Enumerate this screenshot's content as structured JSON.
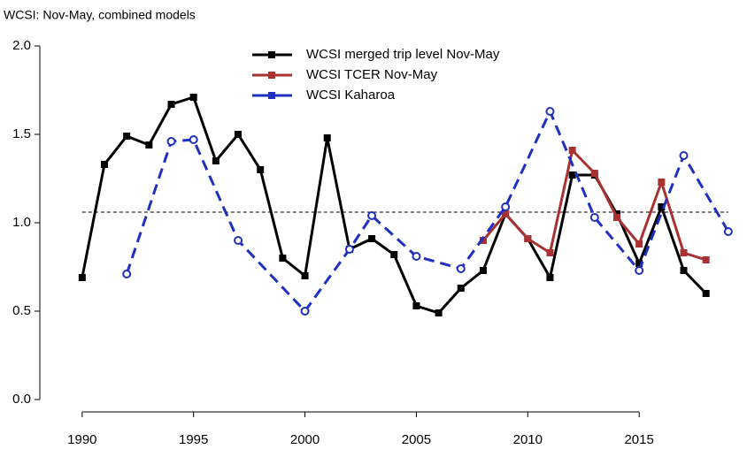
{
  "chart_data": {
    "type": "line",
    "title": "WCSI: Nov-May, combined models",
    "xlim": [
      1988.1,
      2019.8
    ],
    "ylim": [
      -0.07,
      2.1
    ],
    "xticks": [
      1990,
      1995,
      2000,
      2005,
      2010,
      2015
    ],
    "yticks": [
      {
        "value": 0,
        "label": "0.0"
      },
      {
        "value": 0.5,
        "label": "0.5"
      },
      {
        "value": 1,
        "label": "1.0"
      },
      {
        "value": 1.5,
        "label": "1.5"
      },
      {
        "value": 2,
        "label": "2.0"
      }
    ],
    "reference_line": 1.06,
    "series": [
      {
        "name": "WCSI merged trip level Nov-May",
        "color": "#000000",
        "marker": "square",
        "dash": false,
        "x": [
          1990,
          1991,
          1992,
          1993,
          1994,
          1995,
          1996,
          1997,
          1998,
          1999,
          2000,
          2001,
          2002,
          2003,
          2004,
          2005,
          2006,
          2007,
          2008,
          2009,
          2010,
          2011,
          2012,
          2013,
          2014,
          2015,
          2016,
          2017,
          2018
        ],
        "values": [
          0.69,
          1.33,
          1.49,
          1.44,
          1.67,
          1.71,
          1.35,
          1.5,
          1.3,
          0.8,
          0.7,
          1.48,
          0.85,
          0.91,
          0.82,
          0.53,
          0.49,
          0.63,
          0.73,
          1.05,
          0.91,
          0.69,
          1.27,
          1.27,
          1.05,
          0.77,
          1.09,
          0.73,
          0.6
        ]
      },
      {
        "name": "WCSI TCER Nov-May",
        "color": "#a83232",
        "marker": "square",
        "dash": false,
        "x": [
          2008,
          2009,
          2010,
          2011,
          2012,
          2013,
          2014,
          2015,
          2016,
          2017,
          2018
        ],
        "values": [
          0.9,
          1.05,
          0.91,
          0.83,
          1.41,
          1.28,
          1.03,
          0.88,
          1.23,
          0.83,
          0.79
        ]
      },
      {
        "name": "WCSI Kaharoa",
        "color": "#1f2fbf",
        "marker": "circle",
        "dash": true,
        "x": [
          1992,
          1994,
          1995,
          1997,
          2000,
          2002,
          2003,
          2005,
          2007,
          2009,
          2011,
          2013,
          2015,
          2017,
          2019
        ],
        "values": [
          0.71,
          1.46,
          1.47,
          0.9,
          0.5,
          0.85,
          1.04,
          0.81,
          0.74,
          1.09,
          1.63,
          1.03,
          0.73,
          1.38,
          0.95
        ]
      }
    ]
  }
}
